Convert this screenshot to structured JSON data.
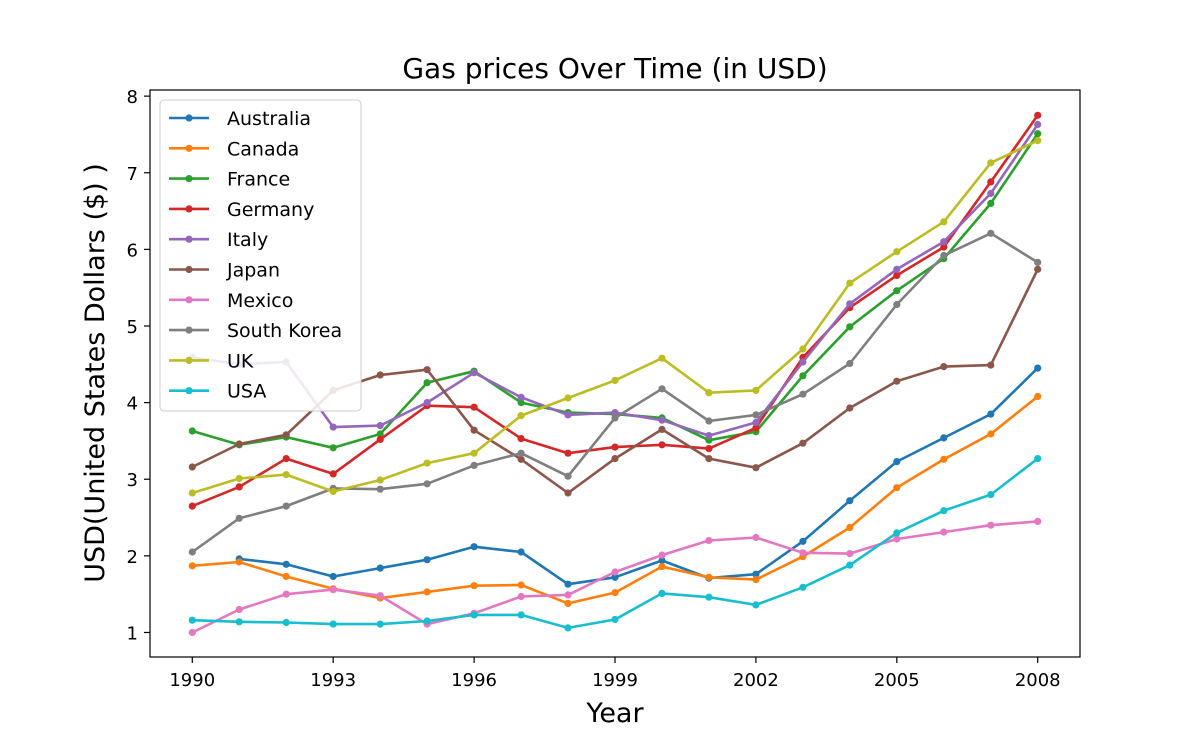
{
  "chart_data": {
    "type": "line",
    "title": "Gas prices Over Time (in USD)",
    "xlabel": "Year",
    "ylabel": "USD(United States Dollars ($) )",
    "xlim": [
      1989.1,
      2008.9
    ],
    "ylim": [
      0.68,
      8.08
    ],
    "xticks": [
      1990,
      1993,
      1996,
      1999,
      2002,
      2005,
      2008
    ],
    "yticks": [
      1,
      2,
      3,
      4,
      5,
      6,
      7,
      8
    ],
    "legend_position": "upper-left",
    "x": [
      1990,
      1991,
      1992,
      1993,
      1994,
      1995,
      1996,
      1997,
      1998,
      1999,
      2000,
      2001,
      2002,
      2003,
      2004,
      2005,
      2006,
      2007,
      2008
    ],
    "series": [
      {
        "name": "Australia",
        "color": "#1f77b4",
        "values": [
          null,
          1.96,
          1.89,
          1.73,
          1.84,
          1.95,
          2.12,
          2.05,
          1.63,
          1.72,
          1.94,
          1.71,
          1.76,
          2.19,
          2.72,
          3.23,
          3.54,
          3.85,
          4.45
        ]
      },
      {
        "name": "Canada",
        "color": "#ff7f0e",
        "values": [
          1.87,
          1.92,
          1.73,
          1.57,
          1.45,
          1.53,
          1.61,
          1.62,
          1.38,
          1.52,
          1.86,
          1.72,
          1.69,
          1.99,
          2.37,
          2.89,
          3.26,
          3.59,
          4.08
        ]
      },
      {
        "name": "France",
        "color": "#2ca02c",
        "values": [
          3.63,
          3.45,
          3.55,
          3.41,
          3.59,
          4.26,
          4.41,
          4.0,
          3.87,
          3.85,
          3.8,
          3.51,
          3.62,
          4.35,
          4.99,
          5.46,
          5.88,
          6.6,
          7.51
        ]
      },
      {
        "name": "Germany",
        "color": "#d62728",
        "values": [
          2.65,
          2.9,
          3.27,
          3.07,
          3.52,
          3.96,
          3.94,
          3.53,
          3.34,
          3.42,
          3.45,
          3.4,
          3.67,
          4.59,
          5.24,
          5.66,
          6.03,
          6.88,
          7.75
        ]
      },
      {
        "name": "Italy",
        "color": "#9467bd",
        "values": [
          4.59,
          4.5,
          4.53,
          3.68,
          3.7,
          4.0,
          4.39,
          4.07,
          3.84,
          3.87,
          3.77,
          3.57,
          3.74,
          4.53,
          5.29,
          5.74,
          6.1,
          6.73,
          7.63
        ]
      },
      {
        "name": "Japan",
        "color": "#8c564b",
        "values": [
          3.16,
          3.46,
          3.58,
          4.16,
          4.36,
          4.43,
          3.64,
          3.26,
          2.82,
          3.27,
          3.65,
          3.27,
          3.15,
          3.47,
          3.93,
          4.28,
          4.47,
          4.49,
          5.74
        ]
      },
      {
        "name": "Mexico",
        "color": "#e377c2",
        "values": [
          1.0,
          1.3,
          1.5,
          1.56,
          1.48,
          1.11,
          1.25,
          1.47,
          1.49,
          1.79,
          2.01,
          2.2,
          2.24,
          2.04,
          2.03,
          2.22,
          2.31,
          2.4,
          2.45
        ]
      },
      {
        "name": "South Korea",
        "color": "#7f7f7f",
        "values": [
          2.05,
          2.49,
          2.65,
          2.88,
          2.87,
          2.94,
          3.18,
          3.34,
          3.04,
          3.8,
          4.18,
          3.76,
          3.84,
          4.11,
          4.51,
          5.28,
          5.92,
          6.21,
          5.83
        ]
      },
      {
        "name": "UK",
        "color": "#bcbd22",
        "values": [
          2.82,
          3.01,
          3.06,
          2.84,
          2.99,
          3.21,
          3.34,
          3.83,
          4.06,
          4.29,
          4.58,
          4.13,
          4.16,
          4.7,
          5.56,
          5.97,
          6.36,
          7.13,
          7.42
        ]
      },
      {
        "name": "USA",
        "color": "#17becf",
        "values": [
          1.16,
          1.14,
          1.13,
          1.11,
          1.11,
          1.15,
          1.23,
          1.23,
          1.06,
          1.17,
          1.51,
          1.46,
          1.36,
          1.59,
          1.88,
          2.3,
          2.59,
          2.8,
          3.27
        ]
      }
    ]
  }
}
